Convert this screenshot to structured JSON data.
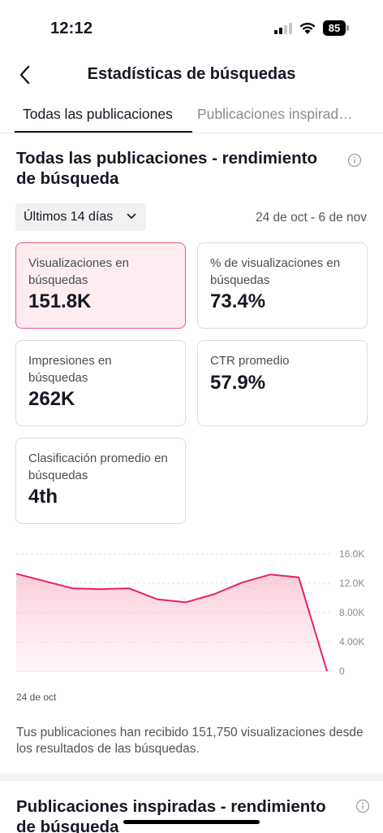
{
  "status_bar": {
    "time": "12:12",
    "battery": "85"
  },
  "header": {
    "title": "Estadísticas de búsquedas"
  },
  "tabs": [
    {
      "label": "Todas las publicaciones",
      "active": true
    },
    {
      "label": "Publicaciones inspirad…",
      "active": false
    }
  ],
  "section1": {
    "title": "Todas las publicaciones - rendimiento de búsqueda",
    "range": "Últimos 14 días",
    "date_range": "24 de oct - 6 de nov",
    "cards": [
      {
        "label": "Visualizaciones en búsquedas",
        "value": "151.8K",
        "selected": true
      },
      {
        "label": "% de visualizaciones en búsquedas",
        "value": "73.4%",
        "selected": false
      },
      {
        "label": "Impresiones en búsquedas",
        "value": "262K",
        "selected": false
      },
      {
        "label": "CTR promedio",
        "value": "57.9%",
        "selected": false
      },
      {
        "label": "Clasificación promedio en búsquedas",
        "value": "4th",
        "selected": false
      }
    ],
    "summary": "Tus publicaciones han recibido 151,750 visualizaciones desde los resultados de las búsquedas."
  },
  "chart_data": {
    "type": "area",
    "x_start_label": "24 de oct",
    "y_ticks": [
      "16.0K",
      "12.0K",
      "8.00K",
      "4.00K",
      "0"
    ],
    "ylim": [
      0,
      16000
    ],
    "values": [
      13300,
      12300,
      11300,
      11200,
      11300,
      9800,
      9400,
      10500,
      12100,
      13200,
      12800,
      0
    ],
    "color": "#e8235a",
    "grid": true
  },
  "section2": {
    "title": "Publicaciones inspiradas - rendimiento de búsqueda"
  },
  "colors": {
    "accent": "#fe2c55",
    "selected_card_bg": "#fdedf0"
  }
}
